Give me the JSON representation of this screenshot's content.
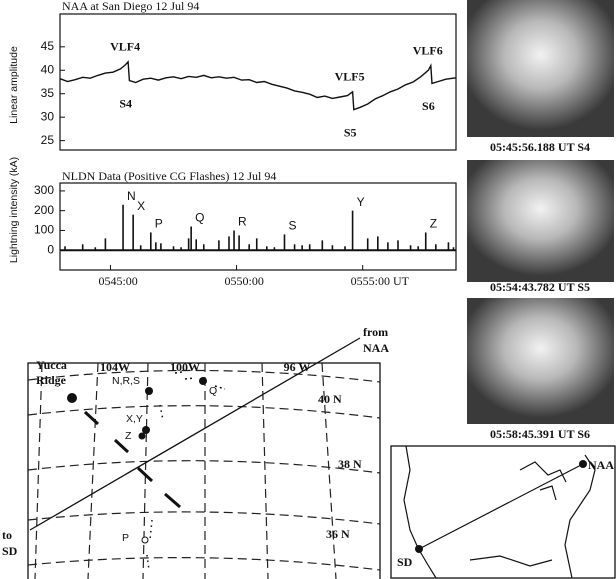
{
  "chart_data": [
    {
      "type": "line",
      "title": "NAA at San Diego   12 Jul 94",
      "ylabel": "Linear amplitude",
      "xlim": [
        43,
        58.7
      ],
      "ylim": [
        23,
        52
      ],
      "yticks": [
        25,
        30,
        35,
        40,
        45
      ],
      "color": "#111111",
      "x": [
        43.0,
        43.3,
        43.6,
        43.9,
        44.2,
        44.5,
        44.8,
        45.1,
        45.4,
        45.6,
        45.7,
        45.75,
        46.0,
        46.3,
        46.6,
        46.9,
        47.2,
        47.5,
        47.8,
        48.1,
        48.4,
        48.7,
        49.0,
        49.3,
        49.6,
        49.9,
        50.2,
        50.5,
        50.8,
        51.1,
        51.4,
        51.7,
        52.0,
        52.3,
        52.6,
        52.9,
        53.2,
        53.5,
        53.8,
        54.1,
        54.4,
        54.6,
        54.65,
        54.9,
        55.2,
        55.5,
        55.8,
        56.1,
        56.4,
        56.7,
        57.0,
        57.3,
        57.6,
        57.7,
        57.75,
        58.0,
        58.3,
        58.7
      ],
      "values": [
        38.2,
        37.6,
        38.0,
        38.5,
        38.3,
        38.9,
        39.4,
        39.6,
        40.3,
        41.2,
        41.8,
        37.8,
        37.4,
        38.1,
        38.3,
        37.9,
        38.4,
        38.6,
        38.2,
        38.7,
        38.5,
        38.9,
        38.4,
        38.6,
        38.3,
        38.5,
        37.9,
        38.0,
        37.4,
        37.6,
        37.0,
        36.6,
        36.2,
        35.6,
        35.3,
        34.9,
        34.2,
        34.5,
        34.0,
        34.3,
        34.6,
        35.4,
        31.6,
        32.1,
        32.8,
        33.9,
        34.6,
        35.4,
        36.0,
        36.9,
        37.5,
        38.6,
        40.0,
        41.0,
        37.2,
        37.6,
        38.1,
        38.4
      ],
      "annotations": [
        {
          "text": "VLF4",
          "x": 45.7
        },
        {
          "text": "S4",
          "x": 45.75
        },
        {
          "text": "VLF5",
          "x": 54.6
        },
        {
          "text": "S5",
          "x": 54.65
        },
        {
          "text": "VLF6",
          "x": 57.7
        },
        {
          "text": "S6",
          "x": 57.75
        }
      ]
    },
    {
      "type": "bar",
      "title": "NLDN Data (Positive CG Flashes) 12 Jul 94",
      "ylabel": "Lightning intensity (kA)",
      "xlim": [
        43,
        58.7
      ],
      "ylim": [
        -100,
        340
      ],
      "yticks": [
        0,
        100,
        200,
        300
      ],
      "color": "#111111",
      "xticks": [
        {
          "value": 45,
          "label": "0545:00"
        },
        {
          "value": 50,
          "label": "0550:00"
        },
        {
          "value": 55,
          "label": "0555:00 UT"
        }
      ],
      "x": [
        43.2,
        43.9,
        44.4,
        44.8,
        45.5,
        45.9,
        46.2,
        46.6,
        46.8,
        47.0,
        47.5,
        47.8,
        48.1,
        48.2,
        48.4,
        48.7,
        49.3,
        49.7,
        49.9,
        50.1,
        50.5,
        50.8,
        51.2,
        51.5,
        51.9,
        52.3,
        52.6,
        52.9,
        53.4,
        53.8,
        54.3,
        54.6,
        55.2,
        55.6,
        56.0,
        56.4,
        56.9,
        57.2,
        57.5,
        57.9,
        58.4,
        58.6
      ],
      "values": [
        20,
        30,
        15,
        60,
        230,
        180,
        25,
        90,
        40,
        35,
        20,
        15,
        60,
        120,
        55,
        30,
        50,
        70,
        100,
        75,
        30,
        60,
        20,
        15,
        80,
        30,
        25,
        30,
        50,
        25,
        20,
        200,
        60,
        70,
        40,
        50,
        25,
        20,
        90,
        30,
        40,
        15
      ],
      "labels": [
        null,
        null,
        null,
        null,
        "N",
        "X",
        null,
        "P",
        null,
        null,
        null,
        null,
        null,
        "Q",
        null,
        null,
        null,
        null,
        "R",
        null,
        null,
        null,
        null,
        null,
        "S",
        null,
        null,
        null,
        null,
        null,
        null,
        "Y",
        null,
        null,
        null,
        null,
        null,
        null,
        "Z",
        null,
        null,
        null
      ]
    }
  ],
  "images": [
    {
      "caption": "05:45:56.188 UT S4"
    },
    {
      "caption": "05:54:43.782 UT S5"
    },
    {
      "caption": "05:58:45.391 UT S6"
    }
  ],
  "map": {
    "lon_labels": [
      "104W",
      "100W",
      "96 W"
    ],
    "lat_labels": [
      "40 N",
      "38 N",
      "36 N"
    ],
    "yucca": [
      "Yucca",
      "Ridge"
    ],
    "places": [
      "N,R,S",
      "Q",
      "X,Y",
      "Z",
      "P"
    ],
    "from_label": [
      "from",
      "NAA"
    ],
    "to_label": [
      "to",
      "SD"
    ]
  },
  "inset": {
    "labels": [
      "NAA",
      "SD"
    ]
  }
}
